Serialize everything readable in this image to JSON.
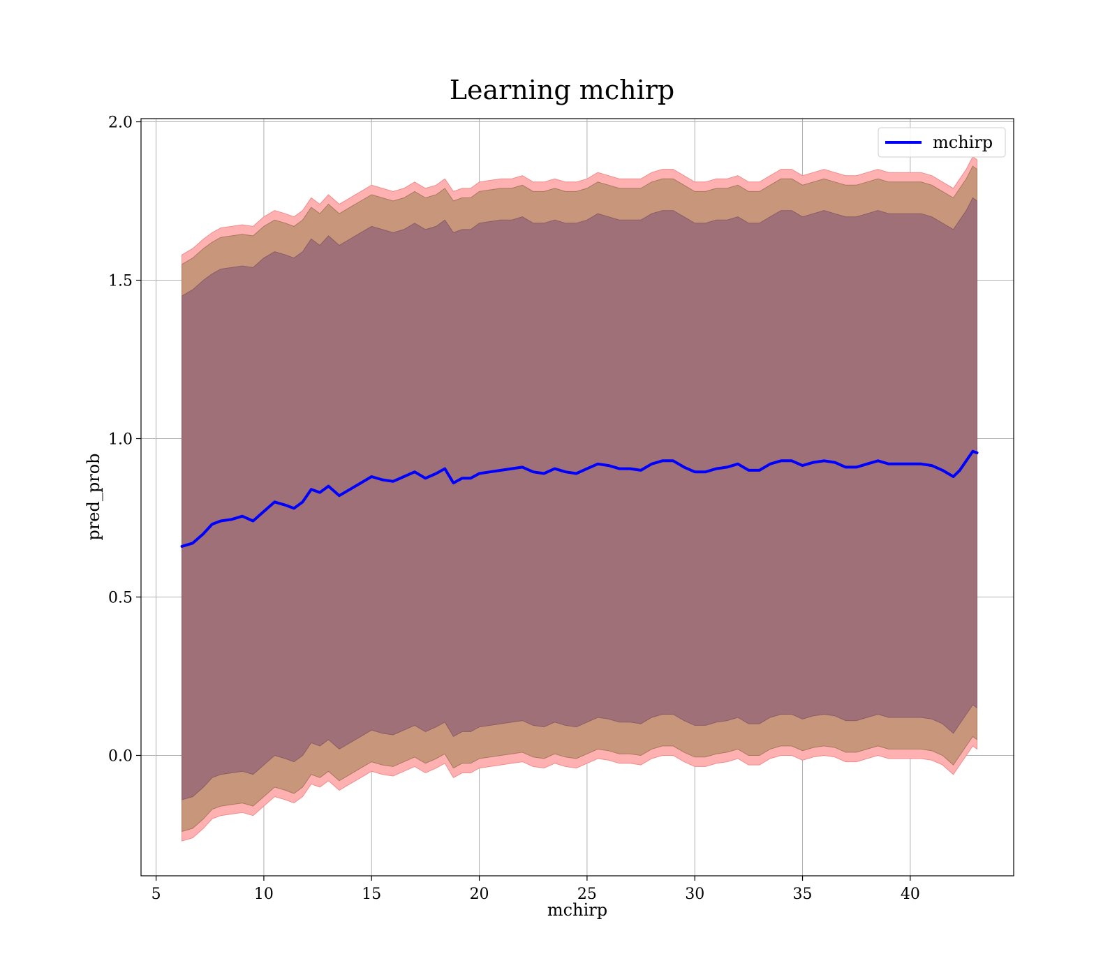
{
  "chart_data": {
    "type": "line",
    "title": "Learning mchirp",
    "xlabel": "mchirp",
    "ylabel": "pred_prob",
    "xlim": [
      4.3,
      44.8
    ],
    "ylim": [
      -0.38,
      2.01
    ],
    "xticks": [
      5,
      10,
      15,
      20,
      25,
      30,
      35,
      40
    ],
    "yticks": [
      0.0,
      0.5,
      1.0,
      1.5,
      2.0
    ],
    "xtick_labels": [
      "5",
      "10",
      "15",
      "20",
      "25",
      "30",
      "35",
      "40"
    ],
    "ytick_labels": [
      "0.0",
      "0.5",
      "1.0",
      "1.5",
      "2.0"
    ],
    "grid": true,
    "legend": {
      "position": "top-right",
      "entries": [
        "mchirp"
      ]
    },
    "colors": {
      "line": "#0000ff",
      "band_outer": "#ffb0b0",
      "band_mid": "#c8967a",
      "band_inner": "#a07078"
    },
    "series": [
      {
        "name": "mchirp",
        "x": [
          6.2,
          6.7,
          7.2,
          7.6,
          8.0,
          8.5,
          9.0,
          9.5,
          10.0,
          10.5,
          11.0,
          11.4,
          11.8,
          12.2,
          12.6,
          13.0,
          13.5,
          14.0,
          14.5,
          15.0,
          15.5,
          16.0,
          16.5,
          17.0,
          17.5,
          18.0,
          18.4,
          18.8,
          19.2,
          19.6,
          20.0,
          20.5,
          21.0,
          21.5,
          22.0,
          22.5,
          23.0,
          23.5,
          24.0,
          24.5,
          25.0,
          25.5,
          26.0,
          26.5,
          27.0,
          27.5,
          28.0,
          28.5,
          29.0,
          29.5,
          30.0,
          30.5,
          31.0,
          31.5,
          32.0,
          32.5,
          33.0,
          33.5,
          34.0,
          34.5,
          35.0,
          35.5,
          36.0,
          36.5,
          37.0,
          37.5,
          38.0,
          38.5,
          39.0,
          39.5,
          40.0,
          40.5,
          41.0,
          41.5,
          42.0,
          42.3,
          42.6,
          42.9,
          43.1
        ],
        "values": [
          0.66,
          0.67,
          0.7,
          0.73,
          0.74,
          0.745,
          0.755,
          0.74,
          0.77,
          0.8,
          0.79,
          0.78,
          0.8,
          0.84,
          0.83,
          0.85,
          0.82,
          0.84,
          0.86,
          0.88,
          0.87,
          0.865,
          0.88,
          0.895,
          0.875,
          0.89,
          0.905,
          0.86,
          0.875,
          0.875,
          0.89,
          0.895,
          0.9,
          0.905,
          0.91,
          0.895,
          0.89,
          0.905,
          0.895,
          0.89,
          0.905,
          0.92,
          0.915,
          0.905,
          0.905,
          0.9,
          0.92,
          0.93,
          0.93,
          0.91,
          0.895,
          0.895,
          0.905,
          0.91,
          0.92,
          0.9,
          0.9,
          0.92,
          0.93,
          0.93,
          0.915,
          0.925,
          0.93,
          0.925,
          0.91,
          0.91,
          0.92,
          0.93,
          0.92,
          0.92,
          0.92,
          0.92,
          0.915,
          0.9,
          0.88,
          0.9,
          0.93,
          0.96,
          0.955
        ]
      }
    ],
    "bands": [
      {
        "label": "outer",
        "upper": [
          1.58,
          1.6,
          1.63,
          1.65,
          1.665,
          1.67,
          1.675,
          1.67,
          1.7,
          1.72,
          1.71,
          1.7,
          1.72,
          1.76,
          1.74,
          1.77,
          1.74,
          1.76,
          1.78,
          1.8,
          1.79,
          1.78,
          1.79,
          1.81,
          1.79,
          1.8,
          1.82,
          1.78,
          1.79,
          1.79,
          1.81,
          1.815,
          1.82,
          1.82,
          1.83,
          1.81,
          1.81,
          1.82,
          1.81,
          1.81,
          1.82,
          1.84,
          1.83,
          1.82,
          1.82,
          1.82,
          1.84,
          1.85,
          1.85,
          1.83,
          1.81,
          1.81,
          1.82,
          1.82,
          1.83,
          1.81,
          1.81,
          1.83,
          1.85,
          1.85,
          1.83,
          1.84,
          1.85,
          1.84,
          1.83,
          1.83,
          1.84,
          1.85,
          1.84,
          1.84,
          1.84,
          1.84,
          1.83,
          1.81,
          1.79,
          1.82,
          1.85,
          1.89,
          1.88
        ],
        "lower": [
          -0.27,
          -0.26,
          -0.23,
          -0.2,
          -0.19,
          -0.185,
          -0.18,
          -0.19,
          -0.16,
          -0.13,
          -0.14,
          -0.15,
          -0.13,
          -0.09,
          -0.1,
          -0.08,
          -0.11,
          -0.09,
          -0.07,
          -0.05,
          -0.06,
          -0.065,
          -0.05,
          -0.035,
          -0.055,
          -0.04,
          -0.025,
          -0.07,
          -0.055,
          -0.055,
          -0.04,
          -0.035,
          -0.03,
          -0.025,
          -0.02,
          -0.035,
          -0.04,
          -0.025,
          -0.035,
          -0.04,
          -0.025,
          -0.01,
          -0.015,
          -0.025,
          -0.025,
          -0.03,
          -0.01,
          0.0,
          0.0,
          -0.02,
          -0.035,
          -0.035,
          -0.025,
          -0.02,
          -0.01,
          -0.03,
          -0.03,
          -0.01,
          0.0,
          0.0,
          -0.015,
          -0.005,
          0.0,
          -0.005,
          -0.02,
          -0.02,
          -0.01,
          0.0,
          -0.01,
          -0.01,
          -0.01,
          -0.01,
          -0.015,
          -0.03,
          -0.06,
          -0.03,
          0.0,
          0.03,
          0.02
        ]
      },
      {
        "label": "mid",
        "upper": [
          1.55,
          1.57,
          1.6,
          1.62,
          1.635,
          1.64,
          1.645,
          1.64,
          1.67,
          1.69,
          1.68,
          1.67,
          1.69,
          1.73,
          1.71,
          1.74,
          1.71,
          1.73,
          1.75,
          1.77,
          1.76,
          1.75,
          1.76,
          1.78,
          1.76,
          1.77,
          1.79,
          1.75,
          1.76,
          1.76,
          1.78,
          1.785,
          1.79,
          1.79,
          1.8,
          1.78,
          1.78,
          1.79,
          1.78,
          1.78,
          1.79,
          1.81,
          1.8,
          1.79,
          1.79,
          1.79,
          1.81,
          1.82,
          1.82,
          1.8,
          1.78,
          1.78,
          1.79,
          1.79,
          1.8,
          1.78,
          1.78,
          1.8,
          1.82,
          1.82,
          1.8,
          1.81,
          1.82,
          1.81,
          1.8,
          1.8,
          1.81,
          1.82,
          1.81,
          1.81,
          1.81,
          1.81,
          1.8,
          1.78,
          1.76,
          1.79,
          1.82,
          1.86,
          1.85
        ],
        "lower": [
          -0.24,
          -0.23,
          -0.2,
          -0.17,
          -0.16,
          -0.155,
          -0.15,
          -0.16,
          -0.13,
          -0.1,
          -0.11,
          -0.12,
          -0.1,
          -0.06,
          -0.07,
          -0.05,
          -0.08,
          -0.06,
          -0.04,
          -0.02,
          -0.03,
          -0.035,
          -0.02,
          -0.005,
          -0.025,
          -0.01,
          0.005,
          -0.04,
          -0.025,
          -0.025,
          -0.01,
          -0.005,
          0.0,
          0.005,
          0.01,
          -0.005,
          -0.01,
          0.005,
          -0.005,
          -0.01,
          0.005,
          0.02,
          0.015,
          0.005,
          0.005,
          0.0,
          0.02,
          0.03,
          0.03,
          0.01,
          -0.005,
          -0.005,
          0.005,
          0.01,
          0.02,
          0.0,
          0.0,
          0.02,
          0.03,
          0.03,
          0.015,
          0.025,
          0.03,
          0.025,
          0.01,
          0.01,
          0.02,
          0.03,
          0.02,
          0.02,
          0.02,
          0.02,
          0.015,
          0.0,
          -0.03,
          0.0,
          0.03,
          0.06,
          0.05
        ]
      },
      {
        "label": "inner",
        "upper": [
          1.45,
          1.47,
          1.5,
          1.52,
          1.535,
          1.54,
          1.545,
          1.54,
          1.57,
          1.59,
          1.58,
          1.57,
          1.59,
          1.63,
          1.61,
          1.64,
          1.61,
          1.63,
          1.65,
          1.67,
          1.66,
          1.65,
          1.66,
          1.68,
          1.66,
          1.67,
          1.69,
          1.65,
          1.66,
          1.66,
          1.68,
          1.685,
          1.69,
          1.69,
          1.7,
          1.68,
          1.68,
          1.69,
          1.68,
          1.68,
          1.69,
          1.71,
          1.7,
          1.69,
          1.69,
          1.69,
          1.71,
          1.72,
          1.72,
          1.7,
          1.68,
          1.68,
          1.69,
          1.69,
          1.7,
          1.68,
          1.68,
          1.7,
          1.72,
          1.72,
          1.7,
          1.71,
          1.72,
          1.71,
          1.7,
          1.7,
          1.71,
          1.72,
          1.71,
          1.71,
          1.71,
          1.71,
          1.7,
          1.68,
          1.66,
          1.69,
          1.72,
          1.76,
          1.75
        ],
        "lower": [
          -0.14,
          -0.13,
          -0.1,
          -0.07,
          -0.06,
          -0.055,
          -0.05,
          -0.06,
          -0.03,
          0.0,
          -0.01,
          -0.02,
          0.0,
          0.04,
          0.03,
          0.05,
          0.02,
          0.04,
          0.06,
          0.08,
          0.07,
          0.065,
          0.08,
          0.095,
          0.075,
          0.09,
          0.105,
          0.06,
          0.075,
          0.075,
          0.09,
          0.095,
          0.1,
          0.105,
          0.11,
          0.095,
          0.09,
          0.105,
          0.095,
          0.09,
          0.105,
          0.12,
          0.115,
          0.105,
          0.105,
          0.1,
          0.12,
          0.13,
          0.13,
          0.11,
          0.095,
          0.095,
          0.105,
          0.11,
          0.12,
          0.1,
          0.1,
          0.12,
          0.13,
          0.13,
          0.115,
          0.125,
          0.13,
          0.125,
          0.11,
          0.11,
          0.12,
          0.13,
          0.12,
          0.12,
          0.12,
          0.12,
          0.115,
          0.1,
          0.07,
          0.1,
          0.13,
          0.16,
          0.15
        ]
      }
    ]
  }
}
